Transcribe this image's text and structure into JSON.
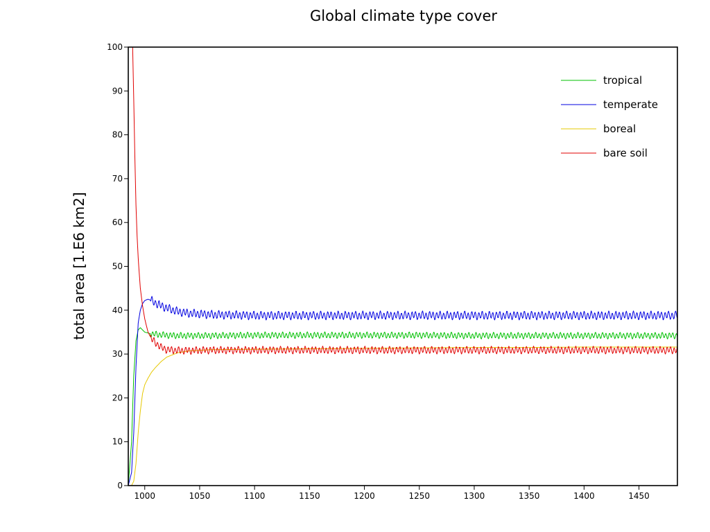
{
  "chart_data": {
    "type": "line",
    "title": "Global climate type cover",
    "xlabel": "",
    "ylabel": "total area [1.E6 km2]",
    "xlim": [
      985,
      1485
    ],
    "ylim": [
      0,
      100
    ],
    "xticks": [
      1000,
      1050,
      1100,
      1150,
      1200,
      1250,
      1300,
      1350,
      1400,
      1450
    ],
    "yticks": [
      0,
      10,
      20,
      30,
      40,
      50,
      60,
      70,
      80,
      90,
      100
    ],
    "grid": false,
    "legend_position": "top-right",
    "series": [
      {
        "name": "tropical",
        "color": "#00c000",
        "x": [
          985,
          988,
          990,
          992,
          994,
          996,
          998,
          1000,
          1003,
          1006,
          1010,
          1015,
          1020,
          1030,
          1040,
          1060,
          1100,
          1150,
          1200,
          1250,
          1300,
          1350,
          1400,
          1450,
          1485
        ],
        "values": [
          0,
          10,
          25,
          33,
          35.5,
          36,
          35.5,
          35,
          34.8,
          34.6,
          34.5,
          34.4,
          34.3,
          34.2,
          34.2,
          34.2,
          34.3,
          34.3,
          34.3,
          34.3,
          34.2,
          34.2,
          34.2,
          34.2,
          34.2
        ],
        "oscillation": 0.6
      },
      {
        "name": "temperate",
        "color": "#0000e0",
        "x": [
          985,
          988,
          990,
          992,
          994,
          996,
          998,
          1000,
          1003,
          1006,
          1010,
          1015,
          1020,
          1030,
          1040,
          1060,
          1100,
          1150,
          1200,
          1250,
          1300,
          1350,
          1400,
          1450,
          1485
        ],
        "values": [
          0,
          3,
          12,
          27,
          37,
          40,
          41.5,
          42.2,
          42.5,
          42.2,
          41.6,
          41,
          40.5,
          39.7,
          39.3,
          39,
          38.8,
          38.8,
          38.8,
          38.8,
          38.8,
          38.8,
          38.8,
          38.8,
          38.8
        ],
        "oscillation": 0.8
      },
      {
        "name": "boreal",
        "color": "#e6c800",
        "x": [
          985,
          988,
          990,
          992,
          994,
          996,
          998,
          1000,
          1003,
          1006,
          1010,
          1015,
          1020,
          1030,
          1040,
          1060,
          1100,
          1150,
          1200,
          1250,
          1300,
          1350,
          1400,
          1450,
          1485
        ],
        "values": [
          0,
          0,
          1,
          5,
          12,
          17,
          21,
          23,
          24.5,
          25.8,
          27,
          28.3,
          29.3,
          30.3,
          30.7,
          31,
          31.1,
          31.2,
          31.3,
          31.4,
          31.5,
          31.5,
          31.6,
          31.6,
          31.6
        ],
        "oscillation": 0
      },
      {
        "name": "bare soil",
        "color": "#e00000",
        "x": [
          989,
          990,
          991,
          992,
          993,
          994,
          996,
          998,
          1000,
          1003,
          1006,
          1010,
          1015,
          1020,
          1030,
          1040,
          1060,
          1100,
          1150,
          1200,
          1250,
          1300,
          1350,
          1400,
          1450,
          1485
        ],
        "values": [
          100,
          88,
          75,
          64,
          57,
          52,
          45,
          41,
          38,
          35,
          33.5,
          32.5,
          31.5,
          31,
          30.8,
          30.8,
          30.9,
          30.9,
          30.9,
          30.9,
          30.9,
          30.9,
          30.9,
          30.9,
          30.9,
          30.9
        ],
        "oscillation": 0.7
      }
    ]
  }
}
